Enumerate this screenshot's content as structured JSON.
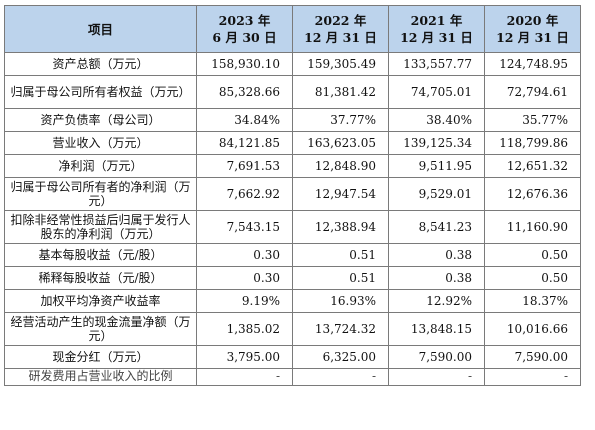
{
  "table": {
    "headers": [
      {
        "line1": "项目",
        "line2": ""
      },
      {
        "line1": "2023 年",
        "line2": "6 月 30 日"
      },
      {
        "line1": "2022 年",
        "line2": "12 月 31 日"
      },
      {
        "line1": "2021 年",
        "line2": "12 月 31 日"
      },
      {
        "line1": "2020 年",
        "line2": "12 月 31 日"
      }
    ],
    "rows": [
      {
        "label": "资产总额（万元）",
        "values": [
          "158,930.10",
          "159,305.49",
          "133,557.77",
          "124,748.95"
        ]
      },
      {
        "label": "归属于母公司所有者权益（万元）",
        "values": [
          "85,328.66",
          "81,381.42",
          "74,705.01",
          "72,794.61"
        ]
      },
      {
        "label": "资产负债率（母公司）",
        "values": [
          "34.84%",
          "37.77%",
          "38.40%",
          "35.77%"
        ]
      },
      {
        "label": "营业收入（万元）",
        "values": [
          "84,121.85",
          "163,623.05",
          "139,125.34",
          "118,799.86"
        ]
      },
      {
        "label": "净利润（万元）",
        "values": [
          "7,691.53",
          "12,848.90",
          "9,511.95",
          "12,651.32"
        ]
      },
      {
        "label": "归属于母公司所有者的净利润（万元）",
        "values": [
          "7,662.92",
          "12,947.54",
          "9,529.01",
          "12,676.36"
        ]
      },
      {
        "label": "扣除非经常性损益后归属于发行人股东的净利润（万元）",
        "values": [
          "7,543.15",
          "12,388.94",
          "8,541.23",
          "11,160.90"
        ]
      },
      {
        "label": "基本每股收益（元/股）",
        "values": [
          "0.30",
          "0.51",
          "0.38",
          "0.50"
        ]
      },
      {
        "label": "稀释每股收益（元/股）",
        "values": [
          "0.30",
          "0.51",
          "0.38",
          "0.50"
        ]
      },
      {
        "label": "加权平均净资产收益率",
        "values": [
          "9.19%",
          "16.93%",
          "12.92%",
          "18.37%"
        ]
      },
      {
        "label": "经营活动产生的现金流量净额（万元）",
        "values": [
          "1,385.02",
          "13,724.32",
          "13,848.15",
          "10,016.66"
        ]
      },
      {
        "label": "现金分红（万元）",
        "values": [
          "3,795.00",
          "6,325.00",
          "7,590.00",
          "7,590.00"
        ]
      },
      {
        "label": "研发费用占营业收入的比例",
        "values": [
          "-",
          "-",
          "-",
          "-"
        ]
      }
    ]
  }
}
